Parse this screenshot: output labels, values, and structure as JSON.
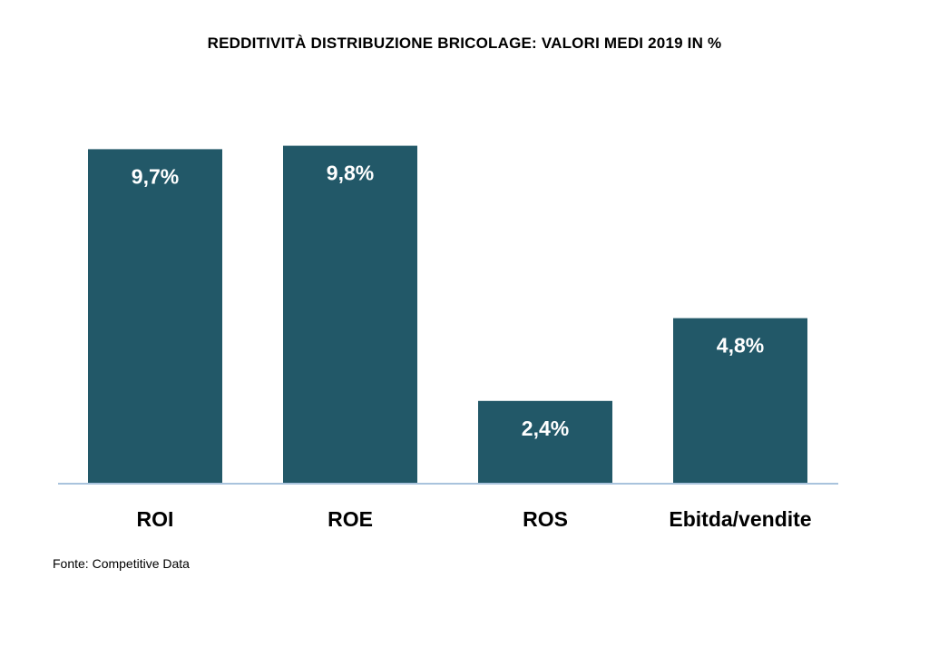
{
  "chart_data": {
    "type": "bar",
    "title": "REDDITIVITÀ DISTRIBUZIONE BRICOLAGE: VALORI MEDI 2019 IN %",
    "categories": [
      "ROI",
      "ROE",
      "ROS",
      "Ebitda/vendite"
    ],
    "values": [
      9.7,
      9.8,
      2.4,
      4.8
    ],
    "value_labels": [
      "9,7%",
      "9,8%",
      "2,4%",
      "4,8%"
    ],
    "ylim": [
      0,
      10
    ],
    "grid": false,
    "legend": "none",
    "bar_color": "#225868"
  },
  "source": "Fonte: Competitive Data"
}
